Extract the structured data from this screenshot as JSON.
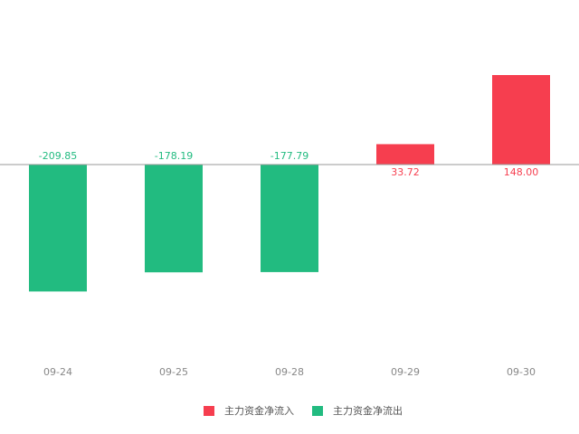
{
  "chart_data": {
    "type": "bar",
    "categories": [
      "09-24",
      "09-25",
      "09-28",
      "09-29",
      "09-30"
    ],
    "series": [
      {
        "name": "主力资金净流入",
        "color": "#f63e4f",
        "values": [
          null,
          null,
          null,
          33.72,
          148
        ],
        "value_labels": [
          null,
          null,
          null,
          "33.72",
          "148.00"
        ]
      },
      {
        "name": "主力资金净流出",
        "color": "#22bb80",
        "values": [
          -209.85,
          -178.19,
          -177.79,
          null,
          null
        ]
      }
    ]
  }
}
